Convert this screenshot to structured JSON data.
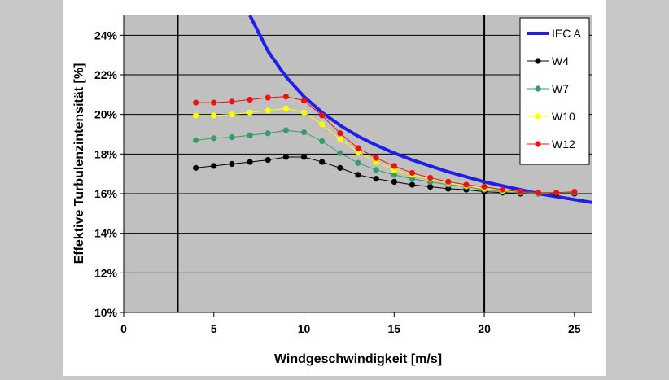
{
  "chart_data": {
    "type": "line",
    "title": "",
    "xlabel": "Windgeschwindigkeit [m/s]",
    "ylabel": "Effektive Turbulenzintensität [%]",
    "xlim": [
      0,
      26
    ],
    "ylim": [
      10,
      25
    ],
    "xticks": [
      0,
      5,
      10,
      15,
      20,
      25
    ],
    "yticks": [
      10,
      12,
      14,
      16,
      18,
      20,
      22,
      24
    ],
    "ytick_labels": [
      "10%",
      "12%",
      "14%",
      "16%",
      "18%",
      "20%",
      "22%",
      "24%"
    ],
    "xtick_labels": [
      "0",
      "5",
      "10",
      "15",
      "20",
      "25"
    ],
    "grid": "horizontal",
    "legend": "top-right",
    "vlines": [
      3,
      20
    ],
    "series": [
      {
        "name": "IEC A",
        "color": "#1f1fe6",
        "markers": false,
        "x": [
          7.0,
          8,
          9,
          10,
          11,
          12,
          13,
          14,
          15,
          16,
          17,
          18,
          19,
          20,
          21,
          22,
          23,
          24,
          25,
          26
        ],
        "y": [
          25.0,
          23.2,
          21.9,
          20.9,
          20.1,
          19.45,
          18.9,
          18.45,
          18.05,
          17.7,
          17.4,
          17.1,
          16.85,
          16.6,
          16.4,
          16.2,
          16.0,
          15.85,
          15.7,
          15.55
        ]
      },
      {
        "name": "W4",
        "color": "#000000",
        "markers": true,
        "x": [
          4,
          5,
          6,
          7,
          8,
          9,
          10,
          11,
          12,
          13,
          14,
          15,
          16,
          17,
          18,
          19,
          20,
          21,
          22,
          23,
          24,
          25
        ],
        "y": [
          17.3,
          17.4,
          17.5,
          17.6,
          17.7,
          17.85,
          17.85,
          17.6,
          17.3,
          16.95,
          16.75,
          16.6,
          16.45,
          16.35,
          16.25,
          16.2,
          16.1,
          16.05,
          16.0,
          16.0,
          16.0,
          16.0
        ]
      },
      {
        "name": "W7",
        "color": "#3a9a6a",
        "markers": true,
        "x": [
          4,
          5,
          6,
          7,
          8,
          9,
          10,
          11,
          12,
          13,
          14,
          15,
          16,
          17,
          18,
          19,
          20,
          21,
          22,
          23,
          24,
          25
        ],
        "y": [
          18.7,
          18.8,
          18.85,
          18.95,
          19.05,
          19.2,
          19.1,
          18.65,
          18.05,
          17.55,
          17.2,
          16.95,
          16.75,
          16.6,
          16.45,
          16.35,
          16.2,
          16.1,
          16.05,
          16.0,
          16.05,
          16.05
        ]
      },
      {
        "name": "W10",
        "color": "#ffff00",
        "markers": true,
        "x": [
          4,
          5,
          6,
          7,
          8,
          9,
          10,
          11,
          12,
          13,
          14,
          15,
          16,
          17,
          18,
          19,
          20,
          21,
          22,
          23,
          24,
          25
        ],
        "y": [
          19.95,
          19.95,
          20.0,
          20.1,
          20.2,
          20.3,
          20.1,
          19.5,
          18.75,
          18.1,
          17.6,
          17.2,
          16.95,
          16.75,
          16.55,
          16.4,
          16.25,
          16.15,
          16.1,
          16.05,
          16.05,
          16.1
        ]
      },
      {
        "name": "W12",
        "color": "#ee1111",
        "markers": true,
        "x": [
          4,
          5,
          6,
          7,
          8,
          9,
          10,
          11,
          12,
          13,
          14,
          15,
          16,
          17,
          18,
          19,
          20,
          21,
          22,
          23,
          24,
          25
        ],
        "y": [
          20.6,
          20.6,
          20.65,
          20.75,
          20.85,
          20.9,
          20.7,
          19.95,
          19.05,
          18.3,
          17.8,
          17.4,
          17.05,
          16.8,
          16.6,
          16.45,
          16.35,
          16.2,
          16.1,
          16.05,
          16.05,
          16.1
        ]
      }
    ]
  }
}
